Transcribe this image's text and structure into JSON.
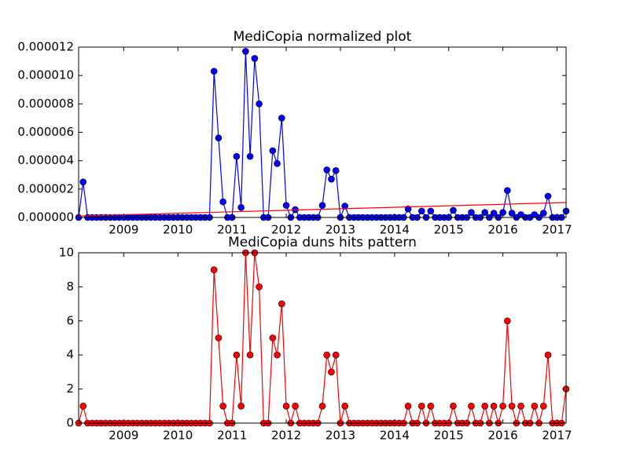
{
  "chart_data": [
    {
      "type": "line",
      "title": "MediCopia normalized plot",
      "x": [
        2008.167,
        2008.25,
        2008.333,
        2008.417,
        2008.5,
        2008.583,
        2008.667,
        2008.75,
        2008.833,
        2008.917,
        2009.0,
        2009.083,
        2009.167,
        2009.25,
        2009.333,
        2009.417,
        2009.5,
        2009.583,
        2009.667,
        2009.75,
        2009.833,
        2009.917,
        2010.0,
        2010.083,
        2010.167,
        2010.25,
        2010.333,
        2010.417,
        2010.5,
        2010.583,
        2010.667,
        2010.75,
        2010.833,
        2010.917,
        2011.0,
        2011.083,
        2011.167,
        2011.25,
        2011.333,
        2011.417,
        2011.5,
        2011.583,
        2011.667,
        2011.75,
        2011.833,
        2011.917,
        2012.0,
        2012.083,
        2012.167,
        2012.25,
        2012.333,
        2012.417,
        2012.5,
        2012.583,
        2012.667,
        2012.75,
        2012.833,
        2012.917,
        2013.0,
        2013.083,
        2013.167,
        2013.25,
        2013.333,
        2013.417,
        2013.5,
        2013.583,
        2013.667,
        2013.75,
        2013.833,
        2013.917,
        2014.0,
        2014.083,
        2014.167,
        2014.25,
        2014.333,
        2014.417,
        2014.5,
        2014.583,
        2014.667,
        2014.75,
        2014.833,
        2014.917,
        2015.0,
        2015.083,
        2015.167,
        2015.25,
        2015.333,
        2015.417,
        2015.5,
        2015.583,
        2015.667,
        2015.75,
        2015.833,
        2015.917,
        2016.0,
        2016.083,
        2016.167,
        2016.25,
        2016.333,
        2016.417,
        2016.5,
        2016.583,
        2016.667,
        2016.75,
        2016.833,
        2016.917,
        2017.0,
        2017.083,
        2017.167
      ],
      "series": [
        {
          "color": "#0000ff",
          "marker": true,
          "values": [
            0,
            2.5e-06,
            0,
            0,
            0,
            0,
            0,
            0,
            0,
            0,
            0,
            0,
            0,
            0,
            0,
            0,
            0,
            0,
            0,
            0,
            0,
            0,
            0,
            0,
            0,
            0,
            0,
            0,
            0,
            0,
            1.03e-05,
            5.6e-06,
            1.1e-06,
            0,
            0,
            4.3e-06,
            7e-07,
            1.17e-05,
            4.3e-06,
            1.12e-05,
            8e-06,
            0,
            0,
            4.7e-06,
            3.8e-06,
            7e-06,
            8.5e-07,
            0,
            5.5e-07,
            0,
            0,
            0,
            0,
            0,
            8.5e-07,
            3.35e-06,
            2.7e-06,
            3.3e-06,
            0,
            8e-07,
            0,
            0,
            0,
            0,
            0,
            0,
            0,
            0,
            0,
            0,
            0,
            0,
            0,
            6e-07,
            0,
            0,
            4.5e-07,
            0,
            4.5e-07,
            0,
            0,
            0,
            0,
            5e-07,
            0,
            0,
            0,
            3.5e-07,
            0,
            0,
            3.5e-07,
            0,
            3e-07,
            0,
            3.5e-07,
            1.9e-06,
            3e-07,
            0,
            2e-07,
            0,
            0,
            2e-07,
            0,
            3e-07,
            1.5e-06,
            0,
            0,
            0,
            4.5e-07
          ]
        },
        {
          "color": "#ff0000",
          "marker": false,
          "x": [
            2008.167,
            2017.167
          ],
          "values": [
            1e-07,
            1.05e-06
          ]
        }
      ],
      "xlim": [
        2008.167,
        2017.167
      ],
      "xticks": [
        2009,
        2010,
        2011,
        2012,
        2013,
        2014,
        2015,
        2016,
        2017
      ],
      "ylim": [
        0,
        1.2e-05
      ],
      "yticks": [
        {
          "value": 0,
          "label": "0.000000"
        },
        {
          "value": 2e-06,
          "label": "0.000002"
        },
        {
          "value": 4e-06,
          "label": "0.000004"
        },
        {
          "value": 6e-06,
          "label": "0.000006"
        },
        {
          "value": 8e-06,
          "label": "0.000008"
        },
        {
          "value": 1e-05,
          "label": "0.000010"
        },
        {
          "value": 1.2e-05,
          "label": "0.000012"
        }
      ]
    },
    {
      "type": "line",
      "title": "MediCopia duns hits pattern",
      "x": [
        2008.167,
        2008.25,
        2008.333,
        2008.417,
        2008.5,
        2008.583,
        2008.667,
        2008.75,
        2008.833,
        2008.917,
        2009.0,
        2009.083,
        2009.167,
        2009.25,
        2009.333,
        2009.417,
        2009.5,
        2009.583,
        2009.667,
        2009.75,
        2009.833,
        2009.917,
        2010.0,
        2010.083,
        2010.167,
        2010.25,
        2010.333,
        2010.417,
        2010.5,
        2010.583,
        2010.667,
        2010.75,
        2010.833,
        2010.917,
        2011.0,
        2011.083,
        2011.167,
        2011.25,
        2011.333,
        2011.417,
        2011.5,
        2011.583,
        2011.667,
        2011.75,
        2011.833,
        2011.917,
        2012.0,
        2012.083,
        2012.167,
        2012.25,
        2012.333,
        2012.417,
        2012.5,
        2012.583,
        2012.667,
        2012.75,
        2012.833,
        2012.917,
        2013.0,
        2013.083,
        2013.167,
        2013.25,
        2013.333,
        2013.417,
        2013.5,
        2013.583,
        2013.667,
        2013.75,
        2013.833,
        2013.917,
        2014.0,
        2014.083,
        2014.167,
        2014.25,
        2014.333,
        2014.417,
        2014.5,
        2014.583,
        2014.667,
        2014.75,
        2014.833,
        2014.917,
        2015.0,
        2015.083,
        2015.167,
        2015.25,
        2015.333,
        2015.417,
        2015.5,
        2015.583,
        2015.667,
        2015.75,
        2015.833,
        2015.917,
        2016.0,
        2016.083,
        2016.167,
        2016.25,
        2016.333,
        2016.417,
        2016.5,
        2016.583,
        2016.667,
        2016.75,
        2016.833,
        2016.917,
        2017.0,
        2017.083,
        2017.167
      ],
      "series": [
        {
          "color": "#ff0000",
          "marker": true,
          "values": [
            0,
            1,
            0,
            0,
            0,
            0,
            0,
            0,
            0,
            0,
            0,
            0,
            0,
            0,
            0,
            0,
            0,
            0,
            0,
            0,
            0,
            0,
            0,
            0,
            0,
            0,
            0,
            0,
            0,
            0,
            9,
            5,
            1,
            0,
            0,
            4,
            1,
            10,
            4,
            10,
            8,
            0,
            0,
            5,
            4,
            7,
            1,
            0,
            1,
            0,
            0,
            0,
            0,
            0,
            1,
            4,
            3,
            4,
            0,
            1,
            0,
            0,
            0,
            0,
            0,
            0,
            0,
            0,
            0,
            0,
            0,
            0,
            0,
            1,
            0,
            0,
            1,
            0,
            1,
            0,
            0,
            0,
            0,
            1,
            0,
            0,
            0,
            1,
            0,
            0,
            1,
            0,
            1,
            0,
            1,
            6,
            1,
            0,
            1,
            0,
            0,
            1,
            0,
            1,
            4,
            0,
            0,
            0,
            2
          ]
        }
      ],
      "xlim": [
        2008.167,
        2017.167
      ],
      "xticks": [
        2009,
        2010,
        2011,
        2012,
        2013,
        2014,
        2015,
        2016,
        2017
      ],
      "ylim": [
        0,
        10
      ],
      "yticks": [
        0,
        2,
        4,
        6,
        8,
        10
      ]
    }
  ]
}
